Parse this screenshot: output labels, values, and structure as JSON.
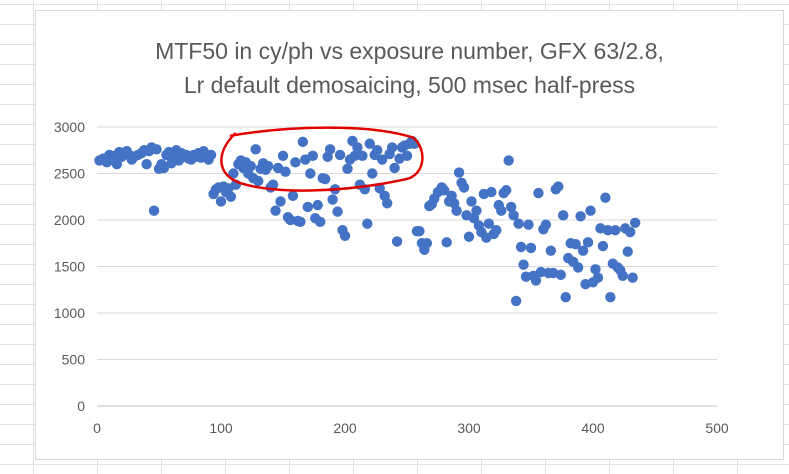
{
  "chart_data": {
    "type": "scatter",
    "title_line1": "MTF50 in cy/ph vs exposure number, GFX 63/2.8,",
    "title_line2": "Lr default demosaicing, 500 msec half-press",
    "xlabel": "",
    "ylabel": "",
    "xlim": [
      0,
      500
    ],
    "ylim": [
      0,
      3000
    ],
    "x_ticks": [
      0,
      100,
      200,
      300,
      400,
      500
    ],
    "y_ticks": [
      0,
      500,
      1000,
      1500,
      2000,
      2500,
      3000
    ],
    "grid": "horizontal",
    "series_color": "#4472c4",
    "annotation": {
      "shape": "hand-drawn-ellipse",
      "color": "#e00000",
      "x_range": [
        100,
        260
      ],
      "y_range": [
        2330,
        2950
      ]
    },
    "points": [
      [
        2,
        2640
      ],
      [
        5,
        2660
      ],
      [
        8,
        2620
      ],
      [
        10,
        2700
      ],
      [
        12,
        2650
      ],
      [
        14,
        2690
      ],
      [
        16,
        2600
      ],
      [
        18,
        2730
      ],
      [
        20,
        2680
      ],
      [
        22,
        2720
      ],
      [
        24,
        2740
      ],
      [
        26,
        2700
      ],
      [
        28,
        2650
      ],
      [
        30,
        2680
      ],
      [
        33,
        2700
      ],
      [
        36,
        2720
      ],
      [
        38,
        2750
      ],
      [
        40,
        2600
      ],
      [
        42,
        2740
      ],
      [
        44,
        2780
      ],
      [
        46,
        2100
      ],
      [
        48,
        2760
      ],
      [
        50,
        2550
      ],
      [
        52,
        2600
      ],
      [
        54,
        2560
      ],
      [
        56,
        2700
      ],
      [
        58,
        2730
      ],
      [
        60,
        2610
      ],
      [
        62,
        2700
      ],
      [
        64,
        2750
      ],
      [
        66,
        2640
      ],
      [
        68,
        2720
      ],
      [
        70,
        2680
      ],
      [
        72,
        2700
      ],
      [
        74,
        2660
      ],
      [
        76,
        2650
      ],
      [
        78,
        2700
      ],
      [
        80,
        2680
      ],
      [
        82,
        2720
      ],
      [
        84,
        2670
      ],
      [
        86,
        2740
      ],
      [
        88,
        2700
      ],
      [
        90,
        2650
      ],
      [
        92,
        2700
      ],
      [
        94,
        2280
      ],
      [
        96,
        2330
      ],
      [
        98,
        2350
      ],
      [
        100,
        2200
      ],
      [
        102,
        2360
      ],
      [
        104,
        2300
      ],
      [
        106,
        2340
      ],
      [
        108,
        2250
      ],
      [
        110,
        2500
      ],
      [
        112,
        2380
      ],
      [
        114,
        2600
      ],
      [
        116,
        2640
      ],
      [
        118,
        2560
      ],
      [
        120,
        2620
      ],
      [
        122,
        2500
      ],
      [
        124,
        2580
      ],
      [
        126,
        2450
      ],
      [
        128,
        2760
      ],
      [
        130,
        2420
      ],
      [
        132,
        2550
      ],
      [
        134,
        2610
      ],
      [
        136,
        2540
      ],
      [
        138,
        2580
      ],
      [
        140,
        2350
      ],
      [
        142,
        2380
      ],
      [
        144,
        2100
      ],
      [
        146,
        2560
      ],
      [
        148,
        2200
      ],
      [
        150,
        2690
      ],
      [
        152,
        2520
      ],
      [
        154,
        2030
      ],
      [
        156,
        2000
      ],
      [
        158,
        2260
      ],
      [
        160,
        2620
      ],
      [
        162,
        1990
      ],
      [
        164,
        1980
      ],
      [
        166,
        2840
      ],
      [
        168,
        2650
      ],
      [
        170,
        2140
      ],
      [
        172,
        2500
      ],
      [
        174,
        2690
      ],
      [
        176,
        2020
      ],
      [
        178,
        2160
      ],
      [
        180,
        1980
      ],
      [
        182,
        2450
      ],
      [
        184,
        2440
      ],
      [
        186,
        2680
      ],
      [
        188,
        2760
      ],
      [
        190,
        2220
      ],
      [
        192,
        2330
      ],
      [
        194,
        2090
      ],
      [
        196,
        2700
      ],
      [
        198,
        1890
      ],
      [
        200,
        1830
      ],
      [
        202,
        2550
      ],
      [
        204,
        2650
      ],
      [
        206,
        2850
      ],
      [
        208,
        2690
      ],
      [
        210,
        2780
      ],
      [
        212,
        2380
      ],
      [
        214,
        2690
      ],
      [
        216,
        2330
      ],
      [
        218,
        1960
      ],
      [
        220,
        2820
      ],
      [
        222,
        2500
      ],
      [
        224,
        2700
      ],
      [
        226,
        2750
      ],
      [
        228,
        2340
      ],
      [
        230,
        2650
      ],
      [
        232,
        2260
      ],
      [
        234,
        2180
      ],
      [
        236,
        2710
      ],
      [
        238,
        2780
      ],
      [
        240,
        2560
      ],
      [
        242,
        1770
      ],
      [
        244,
        2660
      ],
      [
        246,
        2780
      ],
      [
        248,
        2800
      ],
      [
        250,
        2690
      ],
      [
        252,
        2820
      ],
      [
        254,
        2850
      ],
      [
        256,
        2820
      ],
      [
        258,
        1880
      ],
      [
        260,
        1880
      ],
      [
        262,
        1750
      ],
      [
        264,
        1680
      ],
      [
        266,
        1750
      ],
      [
        268,
        2150
      ],
      [
        270,
        2170
      ],
      [
        272,
        2230
      ],
      [
        275,
        2300
      ],
      [
        278,
        2350
      ],
      [
        280,
        2320
      ],
      [
        282,
        1760
      ],
      [
        284,
        2200
      ],
      [
        286,
        2260
      ],
      [
        288,
        2180
      ],
      [
        290,
        2100
      ],
      [
        292,
        2510
      ],
      [
        294,
        2400
      ],
      [
        296,
        2350
      ],
      [
        298,
        2050
      ],
      [
        300,
        1820
      ],
      [
        302,
        2200
      ],
      [
        304,
        2020
      ],
      [
        306,
        2100
      ],
      [
        308,
        1940
      ],
      [
        310,
        1870
      ],
      [
        312,
        2280
      ],
      [
        314,
        1810
      ],
      [
        316,
        1960
      ],
      [
        318,
        2300
      ],
      [
        320,
        1850
      ],
      [
        322,
        1890
      ],
      [
        324,
        2160
      ],
      [
        326,
        2100
      ],
      [
        328,
        2290
      ],
      [
        330,
        2320
      ],
      [
        332,
        2640
      ],
      [
        334,
        2140
      ],
      [
        336,
        2050
      ],
      [
        338,
        1130
      ],
      [
        340,
        1960
      ],
      [
        342,
        1710
      ],
      [
        344,
        1520
      ],
      [
        346,
        1390
      ],
      [
        348,
        1950
      ],
      [
        350,
        1700
      ],
      [
        352,
        1400
      ],
      [
        354,
        1350
      ],
      [
        356,
        2290
      ],
      [
        358,
        1440
      ],
      [
        360,
        1900
      ],
      [
        362,
        1950
      ],
      [
        364,
        1430
      ],
      [
        366,
        1670
      ],
      [
        368,
        1430
      ],
      [
        370,
        2330
      ],
      [
        372,
        2360
      ],
      [
        374,
        1410
      ],
      [
        376,
        2050
      ],
      [
        378,
        1170
      ],
      [
        380,
        1590
      ],
      [
        382,
        1750
      ],
      [
        384,
        1550
      ],
      [
        386,
        1740
      ],
      [
        388,
        1490
      ],
      [
        390,
        2040
      ],
      [
        392,
        1670
      ],
      [
        394,
        1310
      ],
      [
        396,
        1760
      ],
      [
        398,
        2100
      ],
      [
        400,
        1330
      ],
      [
        402,
        1470
      ],
      [
        404,
        1380
      ],
      [
        406,
        1910
      ],
      [
        408,
        1720
      ],
      [
        410,
        2240
      ],
      [
        412,
        1890
      ],
      [
        414,
        1170
      ],
      [
        416,
        1530
      ],
      [
        418,
        1890
      ],
      [
        420,
        1490
      ],
      [
        422,
        1460
      ],
      [
        424,
        1400
      ],
      [
        426,
        1910
      ],
      [
        428,
        1660
      ],
      [
        430,
        1870
      ],
      [
        432,
        1380
      ],
      [
        434,
        1970
      ]
    ]
  }
}
